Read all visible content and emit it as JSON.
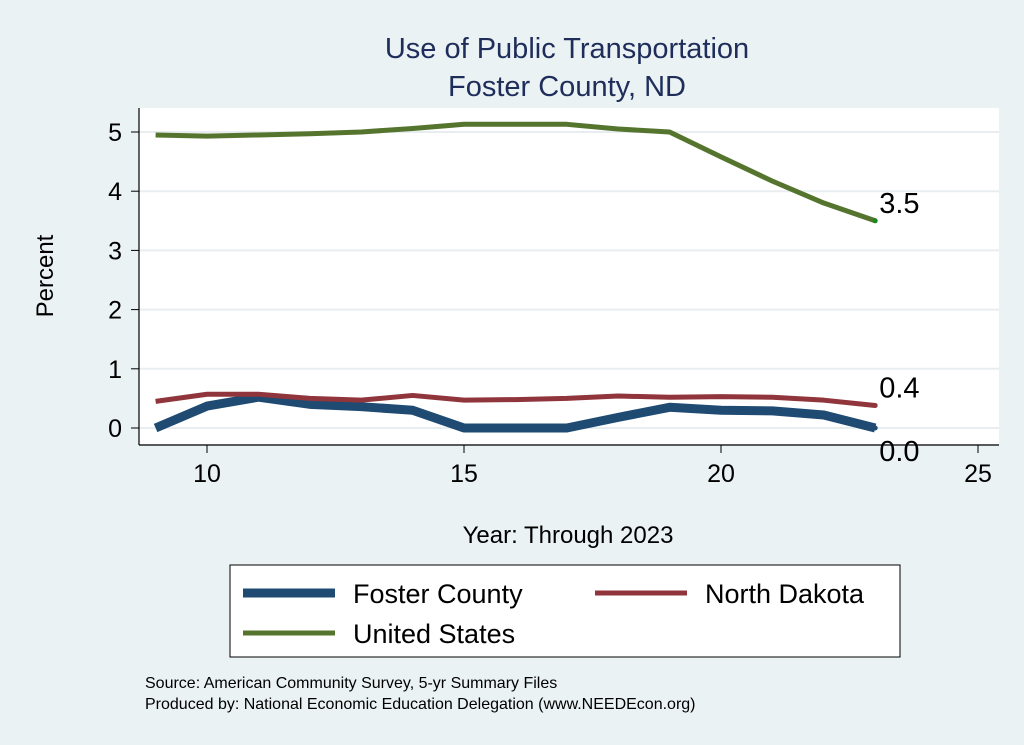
{
  "chart_data": {
    "type": "line",
    "title": "Use of Public Transportation",
    "subtitle": "Foster County, ND",
    "xlabel": "Year: Through 2023",
    "ylabel": "Percent",
    "xlim": [
      9,
      25
    ],
    "ylim": [
      0,
      5
    ],
    "xticks": [
      "10",
      "15",
      "20",
      "25"
    ],
    "yticks": [
      "0",
      "1",
      "2",
      "3",
      "4",
      "5"
    ],
    "grid": true,
    "legend_placement": "bottom",
    "x": [
      9,
      10,
      11,
      12,
      13,
      14,
      15,
      16,
      17,
      18,
      19,
      20,
      21,
      22,
      23
    ],
    "series": [
      {
        "name": "Foster County",
        "color": "#1f4b73",
        "end_label": "0.0",
        "values": [
          0.0,
          0.37,
          0.52,
          0.4,
          0.36,
          0.3,
          0.0,
          0.0,
          0.0,
          0.18,
          0.35,
          0.3,
          0.29,
          0.22,
          0.0
        ]
      },
      {
        "name": "North Dakota",
        "color": "#90353b",
        "end_label": "0.4",
        "values": [
          0.45,
          0.57,
          0.57,
          0.5,
          0.47,
          0.55,
          0.47,
          0.48,
          0.5,
          0.54,
          0.52,
          0.53,
          0.52,
          0.47,
          0.38
        ]
      },
      {
        "name": "United States",
        "color": "#55752f",
        "end_label": "3.5",
        "values": [
          4.95,
          4.93,
          4.95,
          4.97,
          5.0,
          5.06,
          5.13,
          5.13,
          5.13,
          5.05,
          5.0,
          4.58,
          4.17,
          3.8,
          3.5
        ]
      }
    ]
  },
  "footer": {
    "source": "Source: American Community Survey, 5-yr Summary Files",
    "produced": "Produced by: National Economic Education Delegation (www.NEEDEcon.org)"
  }
}
